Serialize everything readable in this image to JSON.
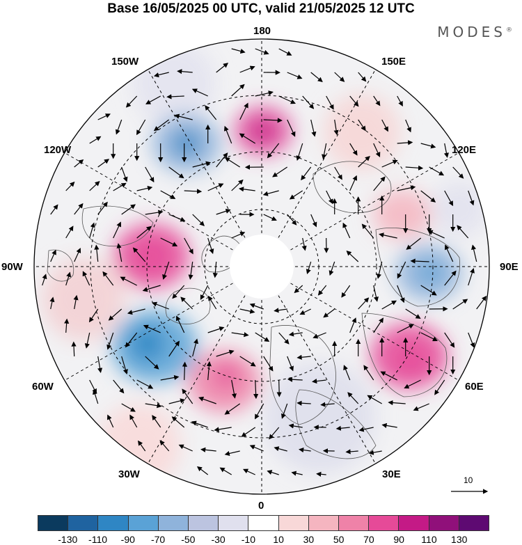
{
  "title": "Base 16/05/2025 00 UTC, valid 21/05/2025 12 UTC",
  "brand": "MODES",
  "brand_mark": "®",
  "longitude_labels": {
    "top": "180",
    "bottom": "0",
    "left": "90W",
    "right": "90E",
    "upper_left_1": "150W",
    "upper_left_2": "120W",
    "upper_right_1": "150E",
    "upper_right_2": "120E",
    "lower_left_1": "60W",
    "lower_left_2": "30W",
    "lower_right_1": "60E",
    "lower_right_2": "30E"
  },
  "reference_vector_label": "10",
  "colorbar": {
    "colors": [
      "#0b3a5e",
      "#1f63a0",
      "#2f86c4",
      "#5aa2d6",
      "#8fb3db",
      "#bcc4e0",
      "#e0e0ee",
      "#ffffff",
      "#f8d8d8",
      "#f5b5c0",
      "#ef82a8",
      "#e64a98",
      "#c41a86",
      "#90107a",
      "#5e0a72"
    ],
    "ticks": [
      "-130",
      "-110",
      "-90",
      "-70",
      "-50",
      "-30",
      "-10",
      "10",
      "30",
      "50",
      "70",
      "90",
      "110",
      "130"
    ]
  },
  "anomaly_blobs": [
    {
      "cx_lon": 178,
      "r_deg": 14,
      "value": 95,
      "color": "#e2529e"
    },
    {
      "cx_lon": 205,
      "r_deg": 18,
      "value": -60,
      "color": "#8fb3db"
    },
    {
      "cx_lon": 258,
      "r_deg": 18,
      "value": 75,
      "color": "#e64a98"
    },
    {
      "cx_lon": 300,
      "r_deg": 14,
      "value": -80,
      "color": "#5aa2d6"
    },
    {
      "cx_lon": 330,
      "r_deg": 14,
      "value": 80,
      "color": "#ef82a8"
    },
    {
      "cx_lon": 80,
      "r_deg": 14,
      "value": -60,
      "color": "#8fb3db"
    },
    {
      "cx_lon": 55,
      "r_deg": 14,
      "value": 85,
      "color": "#e64a98"
    },
    {
      "cx_lon": 120,
      "r_deg": 10,
      "value": 40,
      "color": "#f5b5c0"
    }
  ]
}
